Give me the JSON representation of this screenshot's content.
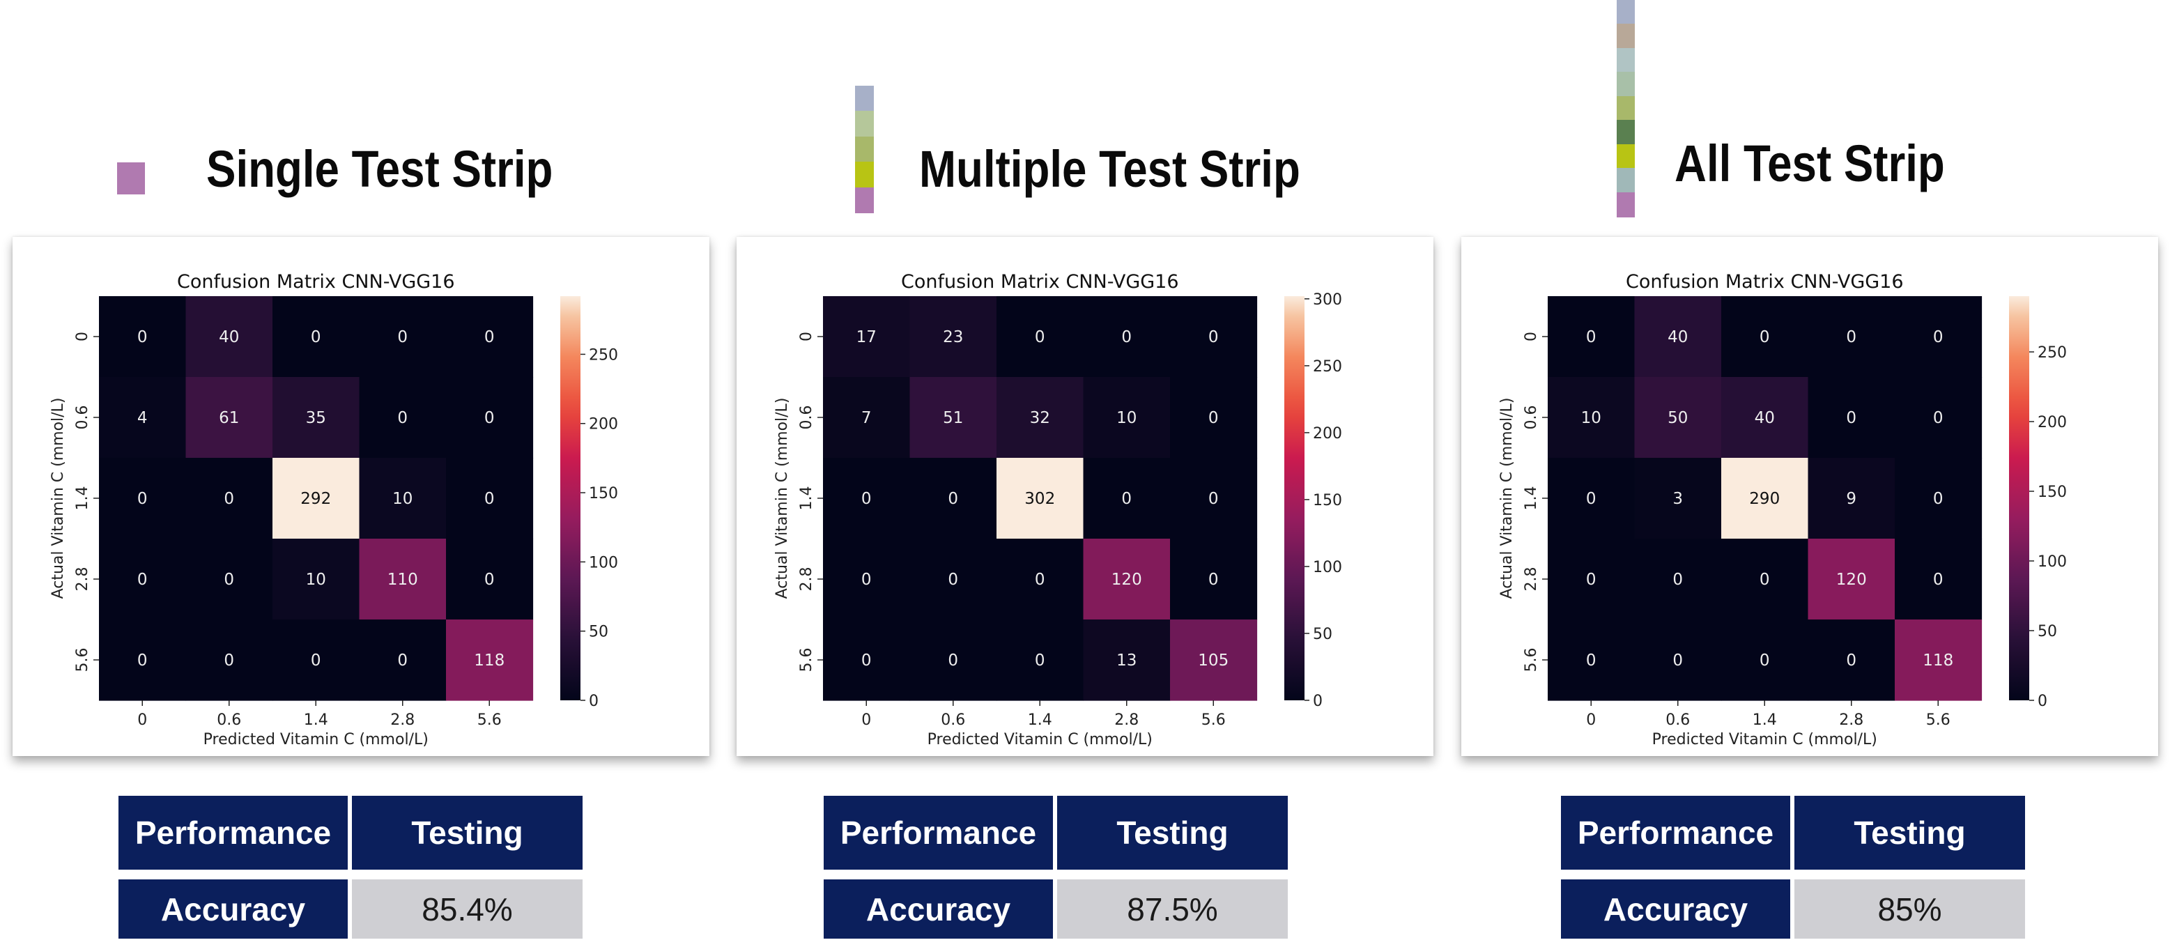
{
  "panels": [
    {
      "heading": "Single Test Strip",
      "strip_colors": [
        "#b07ab0"
      ],
      "chart_data": {
        "type": "heatmap",
        "title": "Confusion Matrix CNN-VGG16",
        "xlabel": "Predicted Vitamin C (mmol/L)",
        "ylabel": "Actual Vitamin C (mmol/L)",
        "x_categories": [
          "0",
          "0.6",
          "1.4",
          "2.8",
          "5.6"
        ],
        "y_categories": [
          "0",
          "0.6",
          "1.4",
          "2.8",
          "5.6"
        ],
        "values": [
          [
            0,
            40,
            0,
            0,
            0
          ],
          [
            4,
            61,
            35,
            0,
            0
          ],
          [
            0,
            0,
            292,
            10,
            0
          ],
          [
            0,
            0,
            10,
            110,
            0
          ],
          [
            0,
            0,
            0,
            0,
            118
          ]
        ],
        "colorbar_range": [
          0,
          292
        ],
        "colorbar_ticks": [
          "0",
          "50",
          "100",
          "150",
          "200",
          "250"
        ]
      },
      "table": {
        "header_left": "Performance",
        "header_right": "Testing",
        "row_label": "Accuracy",
        "row_value": "85.4%"
      }
    },
    {
      "heading": "Multiple Test Strip",
      "strip_colors": [
        "#a7b0c8",
        "#b5c79a",
        "#a8b86a",
        "#b8c414",
        "#b07ab0"
      ],
      "chart_data": {
        "type": "heatmap",
        "title": "Confusion Matrix CNN-VGG16",
        "xlabel": "Predicted Vitamin C (mmol/L)",
        "ylabel": "Actual Vitamin C (mmol/L)",
        "x_categories": [
          "0",
          "0.6",
          "1.4",
          "2.8",
          "5.6"
        ],
        "y_categories": [
          "0",
          "0.6",
          "1.4",
          "2.8",
          "5.6"
        ],
        "values": [
          [
            17,
            23,
            0,
            0,
            0
          ],
          [
            7,
            51,
            32,
            10,
            0
          ],
          [
            0,
            0,
            302,
            0,
            0
          ],
          [
            0,
            0,
            0,
            120,
            0
          ],
          [
            0,
            0,
            0,
            13,
            105
          ]
        ],
        "colorbar_range": [
          0,
          302
        ],
        "colorbar_ticks": [
          "0",
          "50",
          "100",
          "150",
          "200",
          "250",
          "300"
        ]
      },
      "table": {
        "header_left": "Performance",
        "header_right": "Testing",
        "row_label": "Accuracy",
        "row_value": "87.5%"
      }
    },
    {
      "heading": "All Test Strip",
      "strip_colors": [
        "#a7b0c8",
        "#b8a898",
        "#b0c4c4",
        "#a8c0a8",
        "#a8b86a",
        "#5a8050",
        "#b8c414",
        "#a0b8b8",
        "#b07ab0"
      ],
      "chart_data": {
        "type": "heatmap",
        "title": "Confusion Matrix CNN-VGG16",
        "xlabel": "Predicted Vitamin C (mmol/L)",
        "ylabel": "Actual Vitamin C (mmol/L)",
        "x_categories": [
          "0",
          "0.6",
          "1.4",
          "2.8",
          "5.6"
        ],
        "y_categories": [
          "0",
          "0.6",
          "1.4",
          "2.8",
          "5.6"
        ],
        "values": [
          [
            0,
            40,
            0,
            0,
            0
          ],
          [
            10,
            50,
            40,
            0,
            0
          ],
          [
            0,
            3,
            290,
            9,
            0
          ],
          [
            0,
            0,
            0,
            120,
            0
          ],
          [
            0,
            0,
            0,
            0,
            118
          ]
        ],
        "colorbar_range": [
          0,
          290
        ],
        "colorbar_ticks": [
          "0",
          "50",
          "100",
          "150",
          "200",
          "250"
        ]
      },
      "table": {
        "header_left": "Performance",
        "header_right": "Testing",
        "row_label": "Accuracy",
        "row_value": "85%"
      }
    }
  ]
}
